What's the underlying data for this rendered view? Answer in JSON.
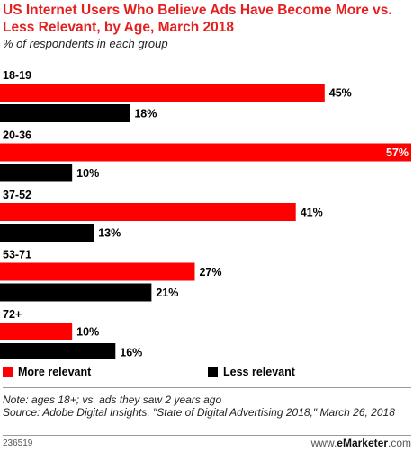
{
  "header": {
    "title": "US Internet Users Who Believe Ads Have Become More vs. Less Relevant, by Age, March 2018",
    "subtitle": "% of respondents in each group"
  },
  "legend": {
    "items": [
      {
        "label": "More relevant",
        "color": "#ff0000"
      },
      {
        "label": "Less relevant",
        "color": "#000000"
      }
    ]
  },
  "footer": {
    "note": "Note: ages 18+; vs. ads they saw 2 years ago",
    "source": "Source: Adobe Digital Insights, \"State of Digital Advertising 2018,\" March 26, 2018",
    "id": "236519",
    "brand_prefix": "www.",
    "brand_name": "eMarketer",
    "brand_suffix": ".com"
  },
  "chart_data": {
    "type": "bar",
    "orientation": "horizontal",
    "categories": [
      "18-19",
      "20-36",
      "37-52",
      "53-71",
      "72+"
    ],
    "series": [
      {
        "name": "More relevant",
        "color": "#ff0000",
        "values": [
          45,
          57,
          41,
          27,
          10
        ]
      },
      {
        "name": "Less relevant",
        "color": "#000000",
        "values": [
          18,
          10,
          13,
          21,
          16
        ]
      }
    ],
    "value_suffix": "%",
    "xlim": [
      0,
      57
    ],
    "grid": false
  }
}
